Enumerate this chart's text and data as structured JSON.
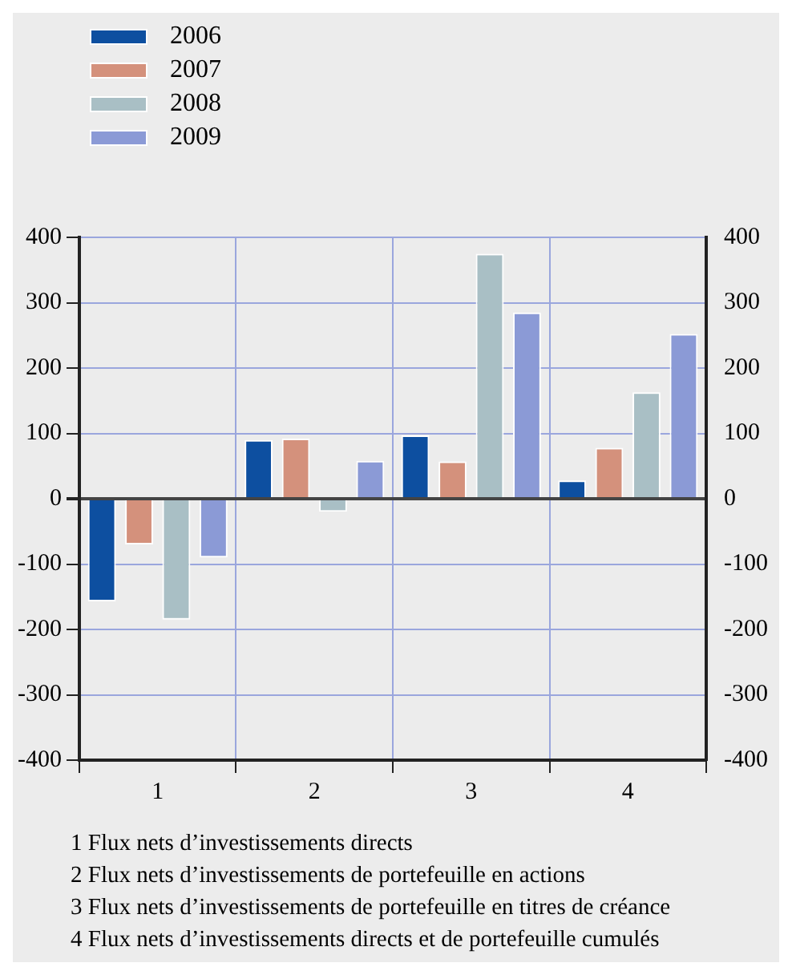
{
  "chart_data": {
    "type": "bar",
    "categories": [
      "1",
      "2",
      "3",
      "4"
    ],
    "series": [
      {
        "name": "2006",
        "color": "#0d4fa0",
        "values": [
          -157,
          90,
          97,
          28
        ]
      },
      {
        "name": "2007",
        "color": "#d4917c",
        "values": [
          -70,
          92,
          57,
          78
        ]
      },
      {
        "name": "2008",
        "color": "#a9bfc5",
        "values": [
          -185,
          -20,
          375,
          163
        ]
      },
      {
        "name": "2009",
        "color": "#8b9ad6",
        "values": [
          -90,
          58,
          285,
          252
        ]
      }
    ],
    "ylim": [
      -400,
      400
    ],
    "yticks": [
      -400,
      -300,
      -200,
      -100,
      0,
      100,
      200,
      300,
      400
    ],
    "y2lim": [
      -400,
      400
    ],
    "y2ticks": [
      -400,
      -300,
      -200,
      -100,
      0,
      100,
      200,
      300,
      400
    ],
    "grid": true,
    "legend": "top left",
    "annotations": [
      "1 Flux nets d’investissements directs",
      "2 Flux nets d’investissements de portefeuille en actions",
      "3 Flux nets d’investissements de portefeuille en titres de créance",
      "4 Flux nets d’investissements directs et de portefeuille cumulés"
    ]
  }
}
